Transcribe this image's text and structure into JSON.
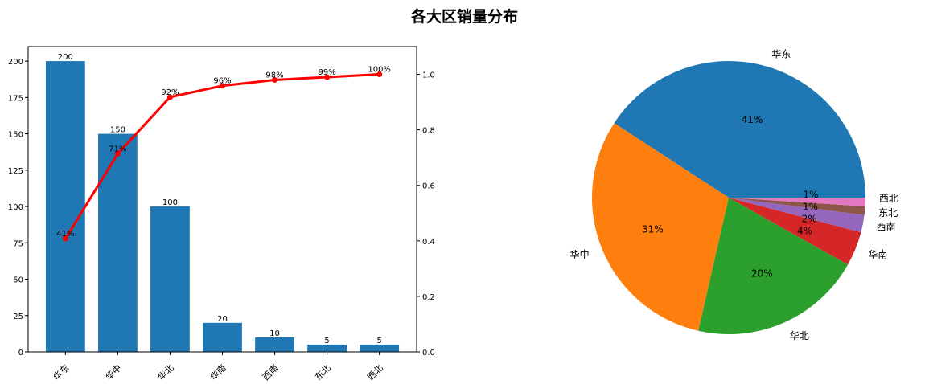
{
  "title": "各大区销量分布",
  "chart_data": [
    {
      "type": "bar",
      "categories": [
        "华东",
        "华中",
        "华北",
        "华南",
        "西南",
        "东北",
        "西北"
      ],
      "values": [
        200,
        150,
        100,
        20,
        10,
        5,
        5
      ],
      "bar_color": "#1f77b4",
      "ylim": [
        0,
        210
      ],
      "yticks": [
        0,
        25,
        50,
        75,
        100,
        125,
        150,
        175,
        200
      ],
      "secondary": {
        "type": "line",
        "values": [
          0.408,
          0.714,
          0.918,
          0.959,
          0.98,
          0.99,
          1.0
        ],
        "labels": [
          "41%",
          "71%",
          "92%",
          "96%",
          "98%",
          "99%",
          "100%"
        ],
        "color": "#ff0000",
        "ylim": [
          0,
          1.1
        ],
        "yticks": [
          "0.0",
          "0.2",
          "0.4",
          "0.6",
          "0.8",
          "1.0"
        ]
      },
      "grid": false
    },
    {
      "type": "pie",
      "categories": [
        "华东",
        "华中",
        "华北",
        "华南",
        "西南",
        "东北",
        "西北"
      ],
      "values": [
        200,
        150,
        100,
        20,
        10,
        5,
        5
      ],
      "pct_labels": [
        "41%",
        "31%",
        "20%",
        "4%",
        "2%",
        "1%",
        "1%"
      ],
      "colors": [
        "#1f77b4",
        "#ff7f0e",
        "#2ca02c",
        "#d62728",
        "#9467bd",
        "#8c564b",
        "#e377c2"
      ]
    }
  ]
}
